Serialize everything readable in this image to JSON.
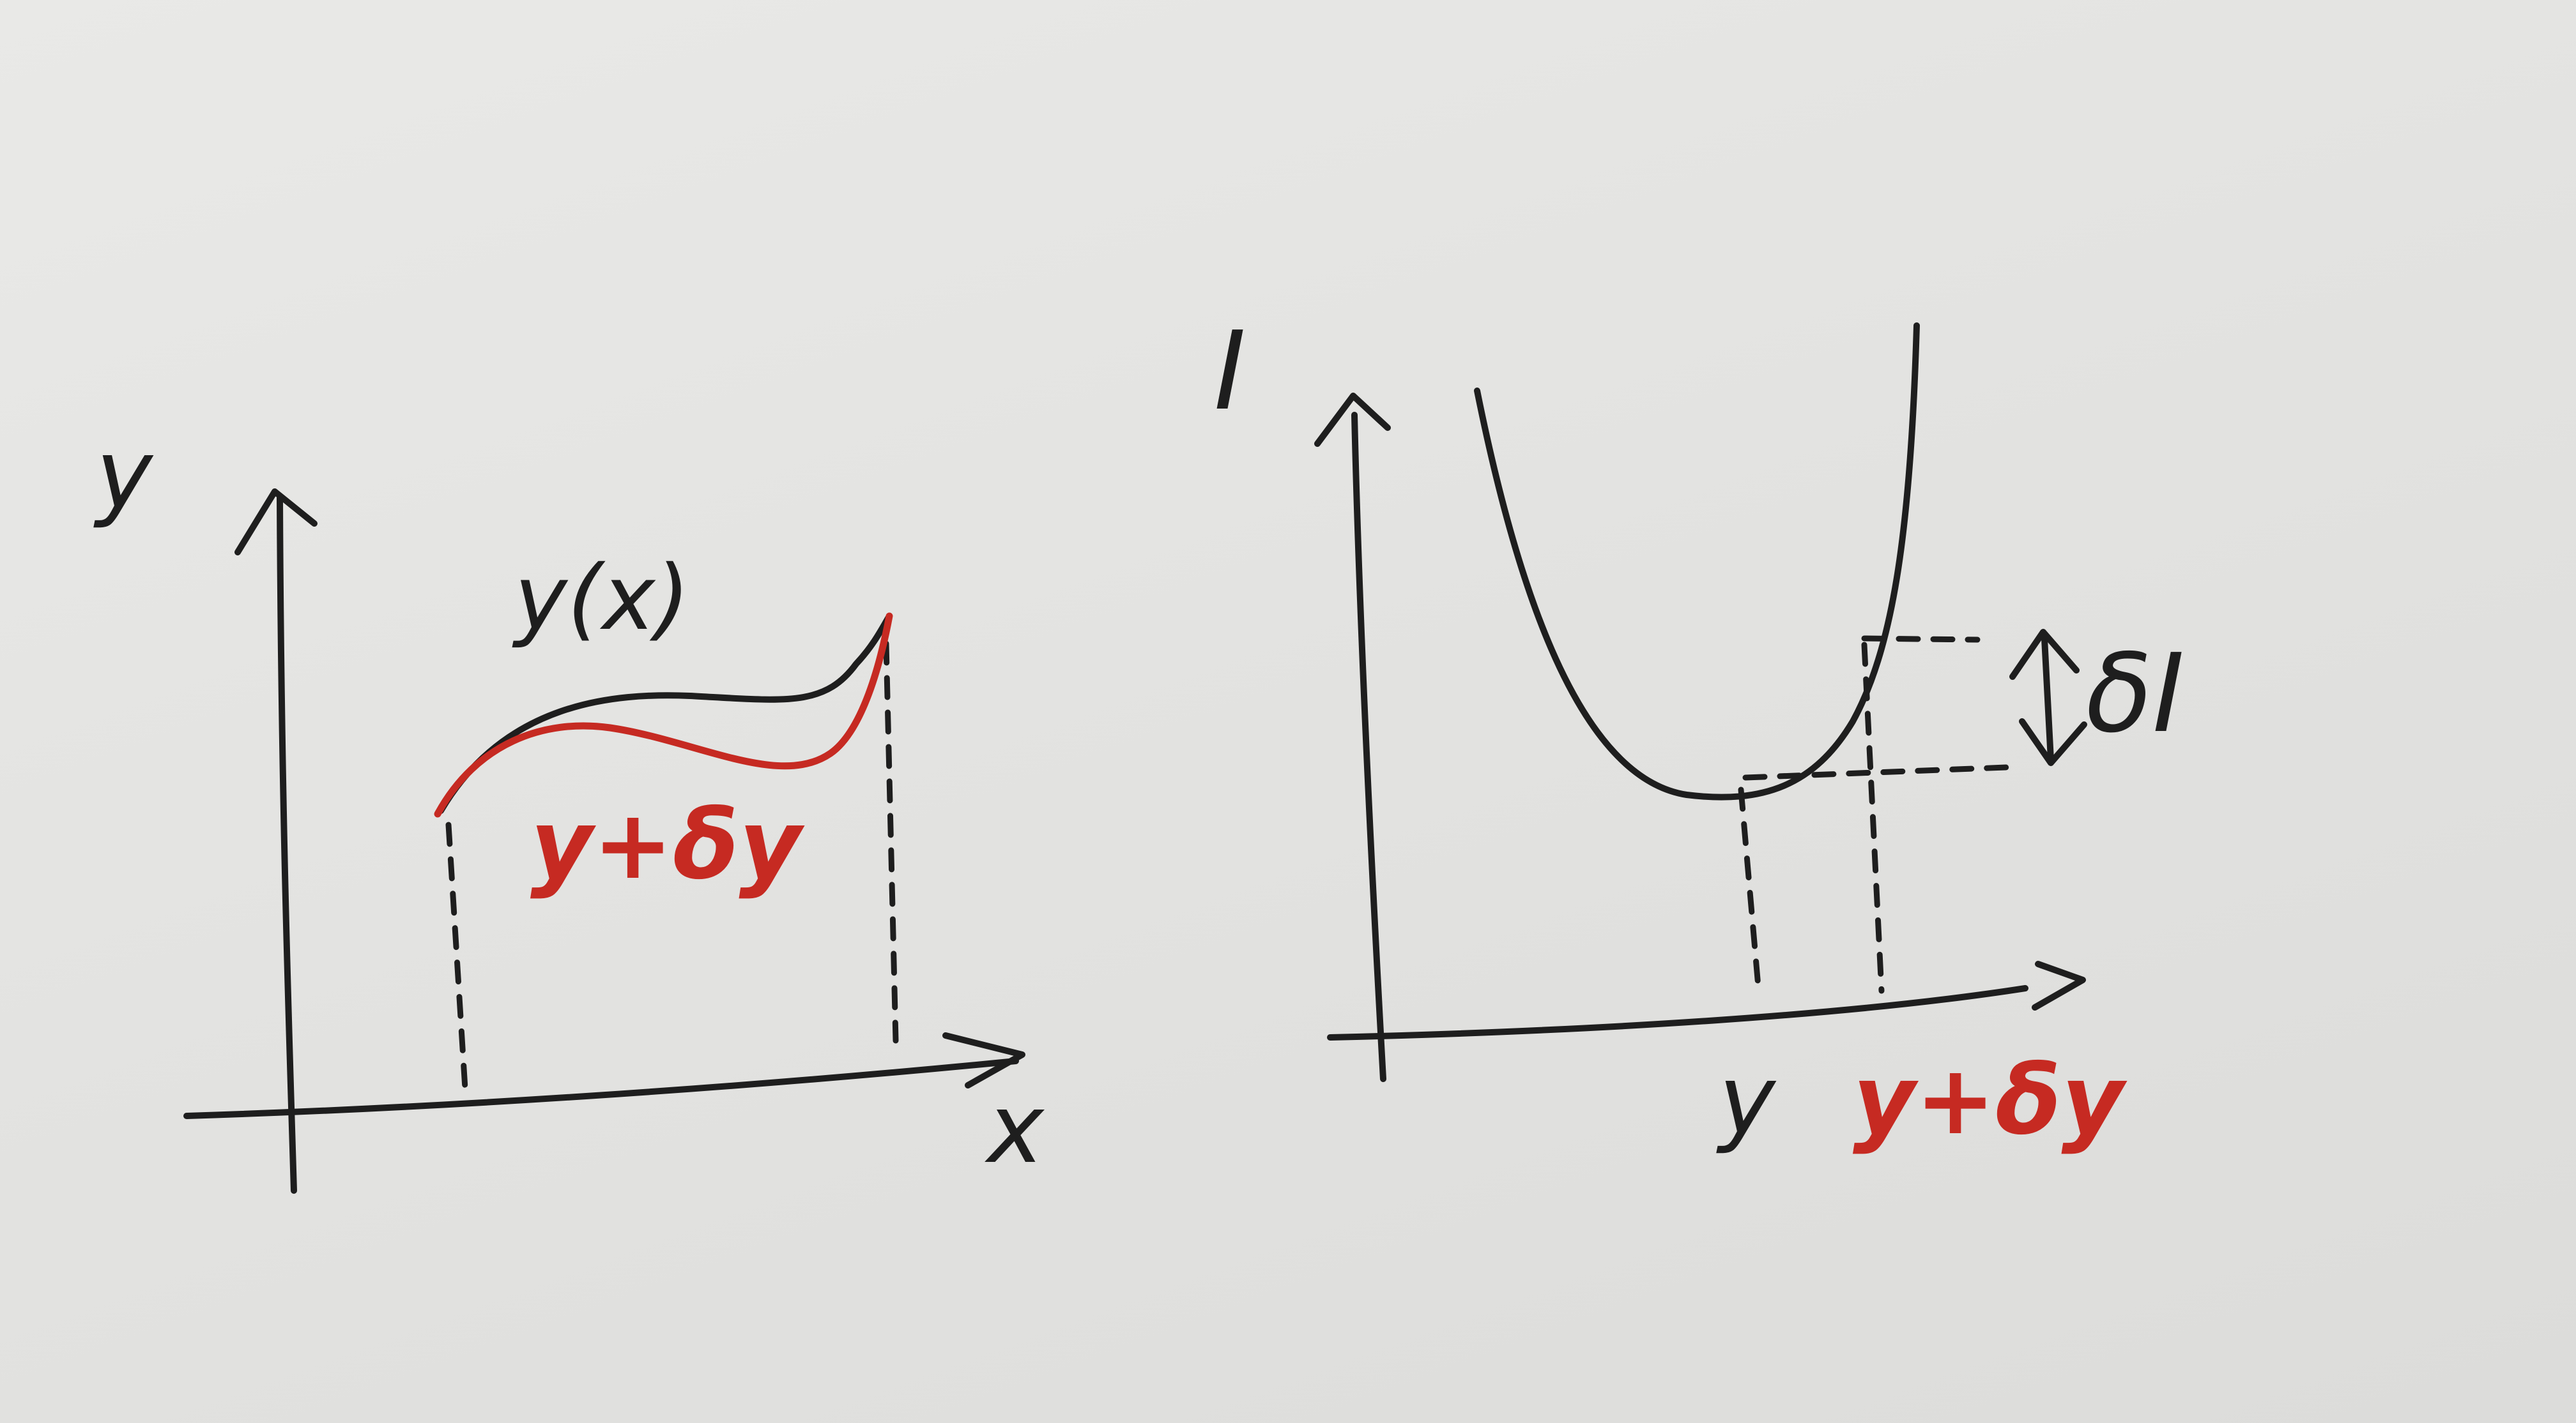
{
  "left_diagram": {
    "y_axis_label": "y",
    "x_axis_label": "x",
    "curve_label": "y(x)",
    "varied_curve_label": "y+δy"
  },
  "right_diagram": {
    "i_axis_label": "I",
    "y_tick_label": "y",
    "varied_tick_label": "y+δy",
    "delta_label": "δI"
  },
  "colors": {
    "ink": "#1e1e1e",
    "red_ink": "#c62a22",
    "paper": "#e4e4e2"
  }
}
